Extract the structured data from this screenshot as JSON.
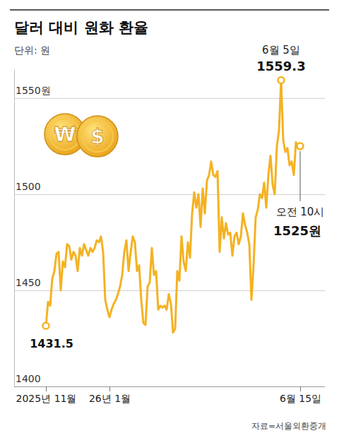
{
  "chart_data": {
    "type": "line",
    "title": "달러 대비 원화 환율",
    "subtitle": "단위: 원",
    "source": "자료=서울외환중개",
    "symbols": [
      "₩",
      "$"
    ],
    "color": "#f4b223",
    "grid": true,
    "ylim": [
      1400,
      1565
    ],
    "yticks": [
      1400,
      1450,
      1500,
      {
        "value": 1550,
        "label": "1550원"
      }
    ],
    "categories": [
      "2025년 11월",
      null,
      null,
      null,
      null,
      null,
      null,
      null,
      null,
      null,
      null,
      null,
      null,
      null,
      null,
      null,
      null,
      null,
      null,
      null,
      null,
      null,
      null,
      null,
      null,
      null,
      null,
      null,
      null,
      null,
      "26년 1월",
      null,
      null,
      null,
      null,
      null,
      null,
      null,
      null,
      null,
      null,
      null,
      null,
      null,
      null,
      null,
      null,
      null,
      null,
      null,
      null,
      null,
      null,
      null,
      null,
      null,
      null,
      null,
      null,
      null,
      null,
      null,
      null,
      null,
      null,
      null,
      null,
      null,
      null,
      null,
      null,
      null,
      null,
      null,
      null,
      null,
      null,
      null,
      null,
      null,
      null,
      null,
      null,
      null,
      null,
      null,
      null,
      null,
      null,
      null,
      null,
      null,
      null,
      null,
      null,
      null,
      null,
      null,
      null,
      null,
      null,
      null,
      null,
      null,
      null,
      null,
      null,
      null,
      null,
      null,
      null,
      null,
      null,
      null,
      null,
      null,
      null,
      null,
      null,
      null,
      "6월 15일"
    ],
    "values": [
      1431.5,
      1444,
      1442,
      1456,
      1460,
      1469,
      1470,
      1450,
      1465,
      1462,
      1474,
      1473,
      1466,
      1470,
      1468,
      1460,
      1472,
      1468,
      1474,
      1471,
      1468,
      1472,
      1470,
      1472,
      1476,
      1475,
      1478,
      1470,
      1445,
      1440,
      1436,
      1440,
      1443,
      1445,
      1448,
      1452,
      1458,
      1470,
      1476,
      1460,
      1470,
      1478,
      1475,
      1460,
      1463,
      1445,
      1433,
      1432,
      1452,
      1454,
      1472,
      1458,
      1460,
      1440,
      1442,
      1441,
      1442,
      1440,
      1448,
      1443,
      1428,
      1430,
      1460,
      1455,
      1478,
      1465,
      1460,
      1475,
      1467,
      1490,
      1501,
      1493,
      1500,
      1483,
      1503,
      1490,
      1507,
      1510,
      1517,
      1510,
      1509,
      1512,
      1470,
      1488,
      1477,
      1485,
      1479,
      1480,
      1468,
      1478,
      1480,
      1474,
      1478,
      1490,
      1484,
      1480,
      1474,
      1445,
      1463,
      1488,
      1492,
      1500,
      1498,
      1506,
      1493,
      1510,
      1520,
      1505,
      1500,
      1525,
      1533,
      1559.3,
      1528,
      1522,
      1524,
      1515,
      1517,
      1510,
      1527,
      1524,
      1525
    ],
    "annotations": [
      {
        "text": "6월 5일",
        "point": 111,
        "value": 1559.3
      },
      {
        "point": 0,
        "value": 1431.5
      },
      {
        "text": "오전 10시",
        "point": 120,
        "value": 1525,
        "label": "1525원"
      }
    ]
  }
}
